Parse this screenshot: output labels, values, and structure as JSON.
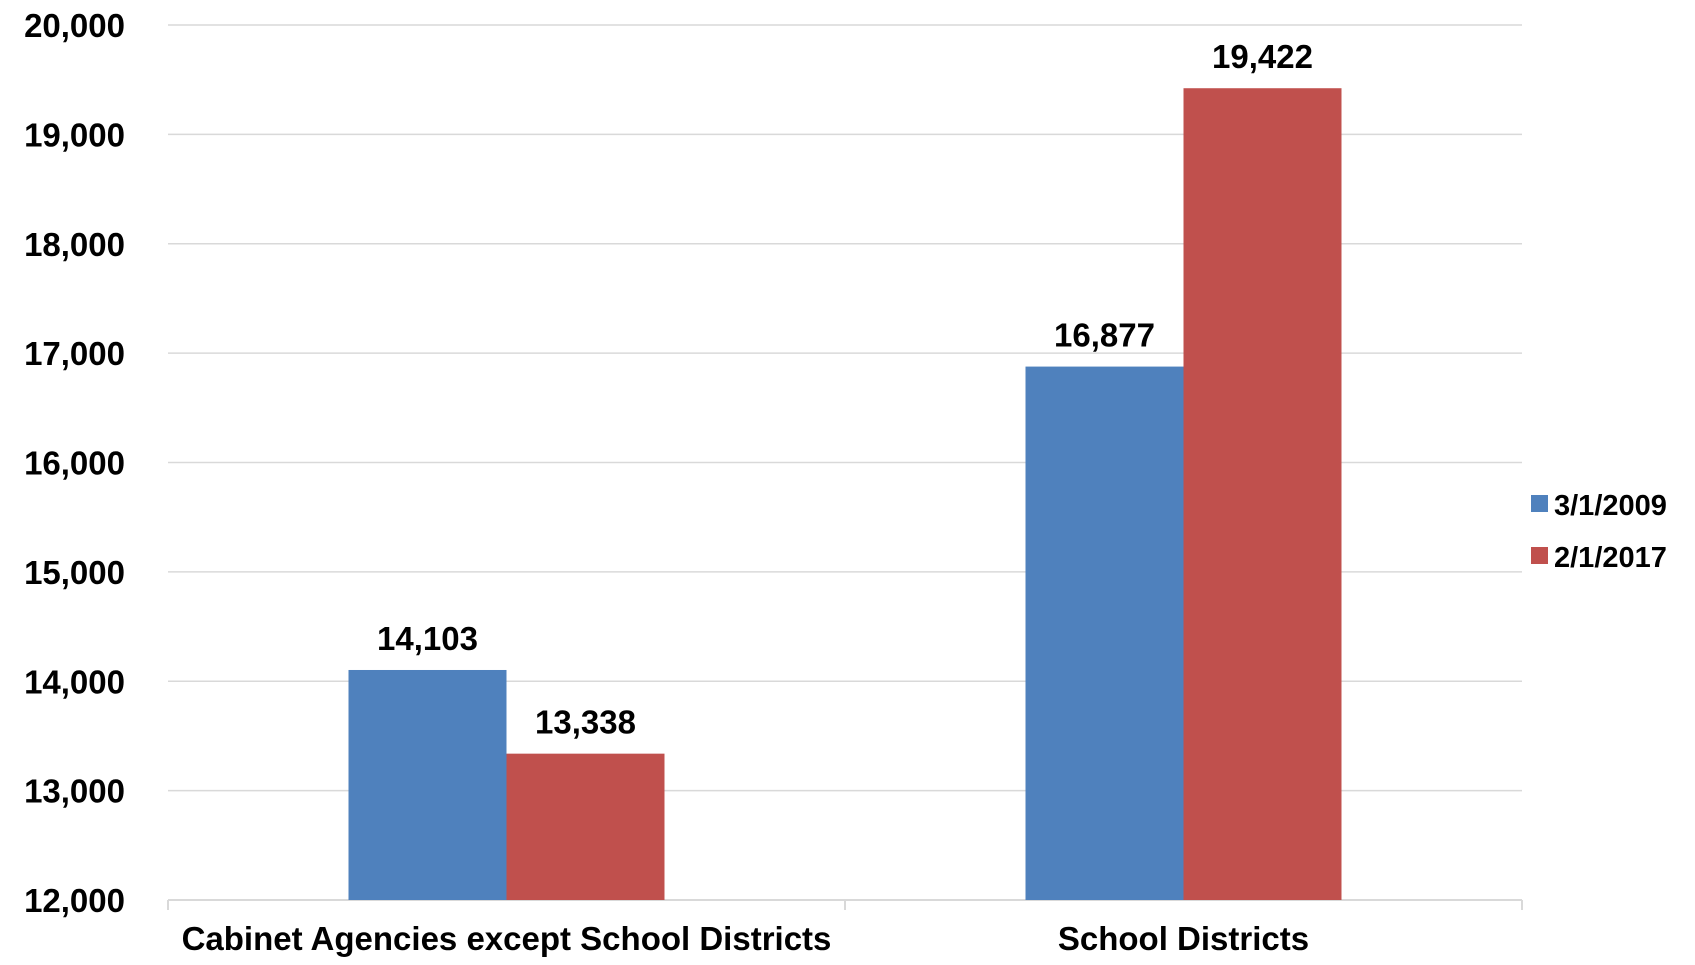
{
  "chart_data": {
    "type": "bar",
    "title": "",
    "xlabel": "",
    "ylabel": "",
    "categories": [
      "Cabinet Agencies except School Districts",
      "School Districts"
    ],
    "series": [
      {
        "name": "3/1/2009",
        "color": "#4F81BD",
        "values": [
          14103,
          16877
        ],
        "labels": [
          "14,103",
          "16,877"
        ]
      },
      {
        "name": "2/1/2017",
        "color": "#C0504D",
        "values": [
          13338,
          19422
        ],
        "labels": [
          "13,338",
          "19,422"
        ]
      }
    ],
    "ylim": [
      12000,
      20000
    ],
    "yticks": [
      12000,
      13000,
      14000,
      15000,
      16000,
      17000,
      18000,
      19000,
      20000
    ],
    "ytick_labels": [
      "12,000",
      "13,000",
      "14,000",
      "15,000",
      "16,000",
      "17,000",
      "18,000",
      "19,000",
      "20,000"
    ],
    "grid": true,
    "legend_position": "right",
    "gridline_color": "#D9D9D9"
  }
}
